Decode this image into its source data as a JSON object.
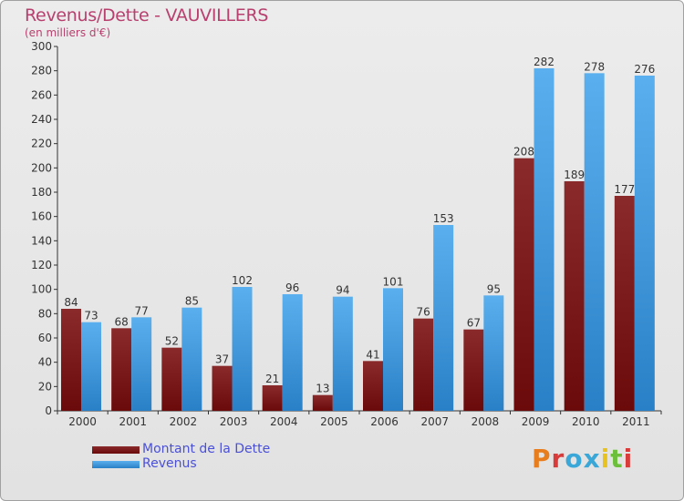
{
  "header": {
    "title": "Revenus/Dette - VAUVILLERS",
    "subtitle": "(en milliers d'€)"
  },
  "colors": {
    "dette": "#6b0a0a",
    "revenus": "#3f9fe6",
    "title": "#b8406e",
    "legend_text": "#4a50d8"
  },
  "chart_data": {
    "type": "bar",
    "categories": [
      "2000",
      "2001",
      "2002",
      "2003",
      "2004",
      "2005",
      "2006",
      "2007",
      "2008",
      "2009",
      "2010",
      "2011"
    ],
    "series": [
      {
        "name": "Montant de la Dette",
        "values": [
          84,
          68,
          52,
          37,
          21,
          13,
          41,
          76,
          67,
          208,
          189,
          177
        ]
      },
      {
        "name": "Revenus",
        "values": [
          73,
          77,
          85,
          102,
          96,
          94,
          101,
          153,
          95,
          282,
          278,
          276
        ]
      }
    ],
    "title": "Revenus/Dette - VAUVILLERS",
    "ylabel": "(en milliers d'€)",
    "ylim": [
      0,
      300
    ],
    "yticks": [
      0,
      20,
      40,
      60,
      80,
      100,
      120,
      140,
      160,
      180,
      200,
      220,
      240,
      260,
      280,
      300
    ],
    "grid": false,
    "legend": "bottom-left"
  },
  "legend": {
    "items": [
      {
        "label": "Montant de la Dette"
      },
      {
        "label": "Revenus"
      }
    ]
  },
  "logo": {
    "letters": [
      "P",
      "r",
      "o",
      "x",
      "i",
      "t",
      "i"
    ],
    "colors": [
      "#e87d1e",
      "#d93a3a",
      "#3aa7d9",
      "#3aa7d9",
      "#e8c21e",
      "#6cbf3a",
      "#d93a3a"
    ]
  }
}
